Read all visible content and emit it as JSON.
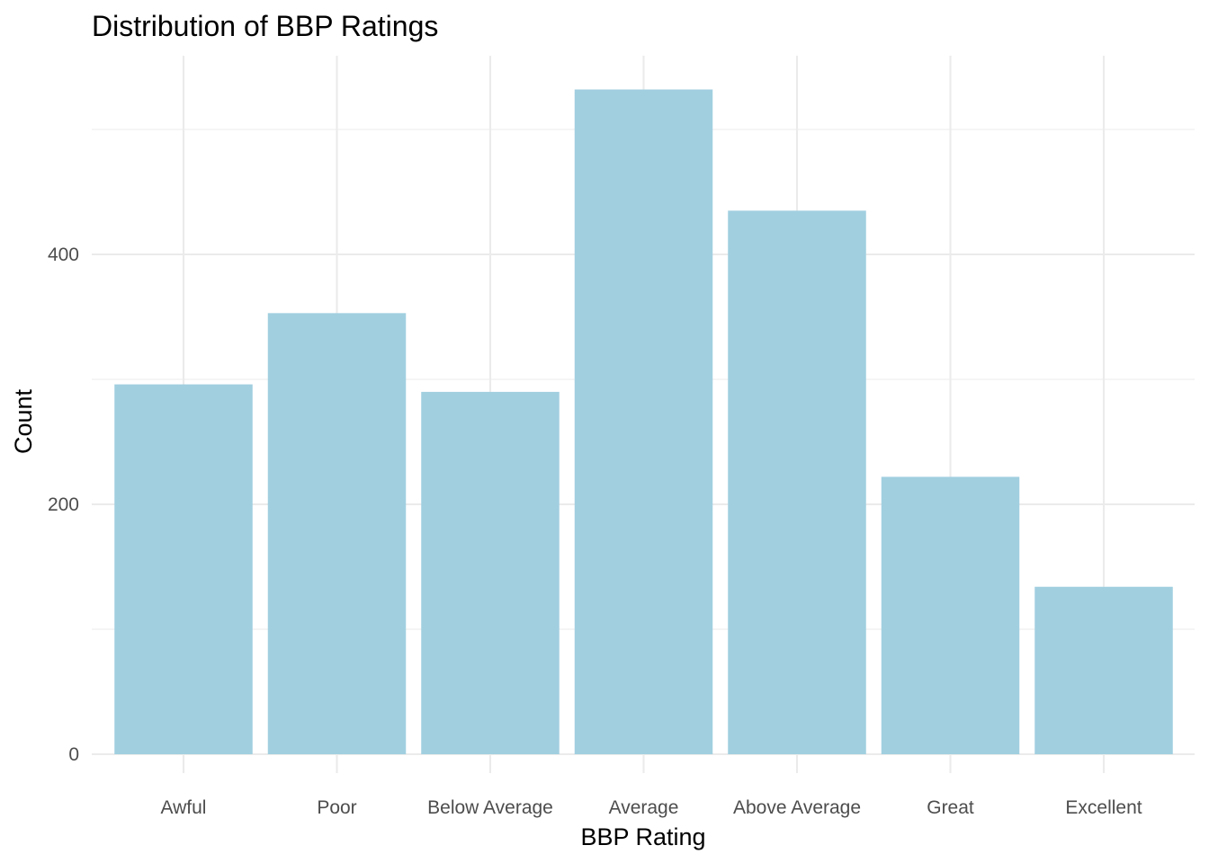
{
  "chart_data": {
    "type": "bar",
    "title": "Distribution of BBP Ratings",
    "xlabel": "BBP Rating",
    "ylabel": "Count",
    "categories": [
      "Awful",
      "Poor",
      "Below Average",
      "Average",
      "Above Average",
      "Great",
      "Excellent"
    ],
    "values": [
      296,
      353,
      290,
      532,
      435,
      222,
      134
    ],
    "ylim": [
      0,
      560
    ],
    "yticks": [
      0,
      200,
      400
    ],
    "y_minor_ticks": [
      100,
      300,
      500
    ],
    "grid": true,
    "legend": "none",
    "bar_color": "#a1cfe0",
    "grid_color": "#ebebeb"
  }
}
